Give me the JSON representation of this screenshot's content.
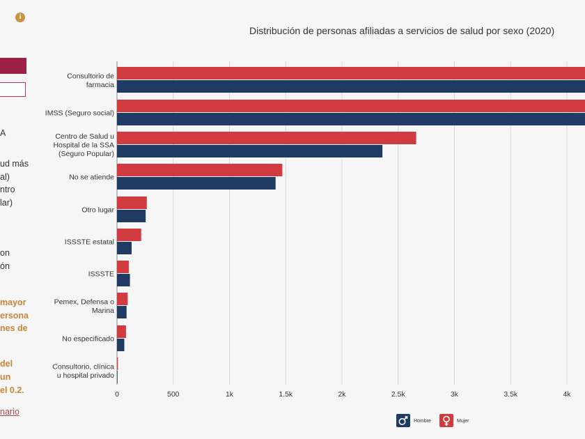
{
  "chart_data": {
    "type": "bar",
    "orientation": "horizontal",
    "title": "Distribución de personas afiliadas a servicios de salud por sexo (2020)",
    "categories": [
      [
        "Consultorio de",
        "farmacia"
      ],
      [
        "IMSS (Seguro social)"
      ],
      [
        "Centro de Salud u",
        "Hospital de la SSA",
        "(Seguro Popular)"
      ],
      [
        "No se atiende"
      ],
      [
        "Otro lugar"
      ],
      [
        "ISSSTE estatal"
      ],
      [
        "ISSSTE"
      ],
      [
        "Pemex, Defensa o",
        "Marina"
      ],
      [
        "No especificado"
      ],
      [
        "Consultorio, clínica",
        "u hospital privado"
      ]
    ],
    "series": [
      {
        "name": "Mujer",
        "color": "#d13a3f",
        "values": [
          4200,
          4200,
          2660,
          1470,
          265,
          215,
          105,
          95,
          80,
          8
        ]
      },
      {
        "name": "Hombre",
        "color": "#1f3b63",
        "values": [
          4200,
          4200,
          2360,
          1410,
          255,
          130,
          115,
          85,
          65,
          5
        ]
      }
    ],
    "x_ticks": [
      "0",
      "500",
      "1k",
      "1.5k",
      "2k",
      "2.5k",
      "3k",
      "3.5k",
      "4k"
    ],
    "xlim": [
      0,
      4000
    ],
    "grid": true,
    "legend": [
      {
        "name": "Hombre",
        "icon": "male-symbol-icon",
        "color": "#1f3b63"
      },
      {
        "name": "Mujer",
        "icon": "female-symbol-icon",
        "color": "#d13a3f"
      }
    ]
  },
  "left_panel": {
    "info_icon": "i",
    "fragments": [
      {
        "text": "A",
        "style": "dark"
      },
      {
        "text": "ud más",
        "style": "dark"
      },
      {
        "text": "al)",
        "style": "dark"
      },
      {
        "text": "ntro",
        "style": "dark"
      },
      {
        "text": "lar)",
        "style": "dark"
      },
      {
        "text": "on",
        "style": "dark"
      },
      {
        "text": "ón",
        "style": "dark"
      },
      {
        "text": "mayor",
        "style": "gold"
      },
      {
        "text": "ersona",
        "style": "gold"
      },
      {
        "text": "nes de",
        "style": "gold"
      },
      {
        "text": "del",
        "style": "gold"
      },
      {
        "text": "un",
        "style": "gold"
      },
      {
        "text": "el 0.2.",
        "style": "gold"
      },
      {
        "text": "nario",
        "style": "link"
      }
    ]
  }
}
